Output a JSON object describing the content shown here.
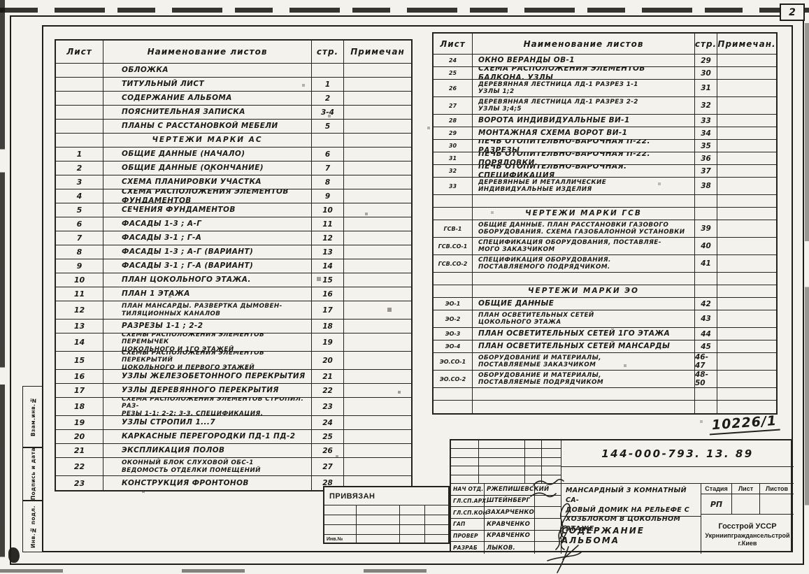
{
  "page": {
    "number": "2"
  },
  "margin_labels": [
    "Взам.инв.№",
    "Подпись и дата",
    "Инв.№ подл."
  ],
  "left_table": {
    "headers": {
      "sheet": "Лист",
      "name": "Наименование листов",
      "page": "стр.",
      "note": "Примечан"
    },
    "rows": [
      {
        "sheet": "",
        "name": "ОБЛОЖКА",
        "page": "",
        "note": ""
      },
      {
        "sheet": "",
        "name": "ТИТУЛЬНЫЙ ЛИСТ",
        "page": "1",
        "note": ""
      },
      {
        "sheet": "",
        "name": "СОДЕРЖАНИЕ АЛЬБОМА",
        "page": "2",
        "note": ""
      },
      {
        "sheet": "",
        "name": "ПОЯСНИТЕЛЬНАЯ ЗАПИСКА",
        "page": "3-4",
        "note": ""
      },
      {
        "sheet": "",
        "name": "ПЛАНЫ С РАССТАНОВКОЙ МЕБЕЛИ",
        "page": "5",
        "note": ""
      },
      {
        "type": "section",
        "sheet": "",
        "name": "ЧЕРТЕЖИ МАРКИ АС",
        "page": "",
        "note": ""
      },
      {
        "sheet": "1",
        "name": "ОБЩИЕ ДАННЫЕ (НАЧАЛО)",
        "page": "6",
        "note": ""
      },
      {
        "sheet": "2",
        "name": "ОБЩИЕ ДАННЫЕ (ОКОНЧАНИЕ)",
        "page": "7",
        "note": ""
      },
      {
        "sheet": "3",
        "name": "СХЕМА ПЛАНИРОВКИ УЧАСТКА",
        "page": "8",
        "note": ""
      },
      {
        "sheet": "4",
        "name": "СХЕМА РАСПОЛОЖЕНИЯ ЭЛЕМЕНТОВ ФУНДАМЕНТОВ",
        "page": "9",
        "note": ""
      },
      {
        "sheet": "5",
        "name": "СЕЧЕНИЯ ФУНДАМЕНТОВ",
        "page": "10",
        "note": ""
      },
      {
        "sheet": "6",
        "name": "ФАСАДЫ 1-3 ; А-Г",
        "page": "11",
        "note": ""
      },
      {
        "sheet": "7",
        "name": "ФАСАДЫ 3-1 ; Г-А",
        "page": "12",
        "note": ""
      },
      {
        "sheet": "8",
        "name": "ФАСАДЫ 1-3 ; А-Г (ВАРИАНТ)",
        "page": "13",
        "note": ""
      },
      {
        "sheet": "9",
        "name": "ФАСАДЫ 3-1 ; Г-А (ВАРИАНТ)",
        "page": "14",
        "note": ""
      },
      {
        "sheet": "10",
        "name": "ПЛАН ЦОКОЛЬНОГО ЭТАЖА.",
        "page": "15",
        "note": ""
      },
      {
        "sheet": "11",
        "name": "ПЛАН 1 ЭТАЖА",
        "page": "16",
        "note": ""
      },
      {
        "sheet": "12",
        "tall": true,
        "name": "ПЛАН МАНСАРДЫ. РАЗВЕРТКА ДЫМОВЕН-\nТИЛЯЦИОННЫХ КАНАЛОВ",
        "page": "17",
        "note": ""
      },
      {
        "sheet": "13",
        "name": "РАЗРЕЗЫ 1-1 ; 2-2",
        "page": "18",
        "note": ""
      },
      {
        "sheet": "14",
        "tall": true,
        "name": "СХЕМЫ РАСПОЛОЖЕНИЯ ЭЛЕМЕНТОВ ПЕРЕМЫЧЕК\nЦОКОЛЬНОГО И 1ГО ЭТАЖЕЙ",
        "page": "19",
        "note": ""
      },
      {
        "sheet": "15",
        "tall": true,
        "name": "СХЕМЫ РАСПОЛОЖЕНИЯ ЭЛЕМЕНТОВ ПЕРЕКРЫТИЙ\nЦОКОЛЬНОГО И ПЕРВОГО ЭТАЖЕЙ",
        "page": "20",
        "note": ""
      },
      {
        "sheet": "16",
        "name": "УЗЛЫ ЖЕЛЕЗОБЕТОННОГО ПЕРЕКРЫТИЯ",
        "page": "21",
        "note": ""
      },
      {
        "sheet": "17",
        "name": "УЗЛЫ ДЕРЕВЯННОГО ПЕРЕКРЫТИЯ",
        "page": "22",
        "note": ""
      },
      {
        "sheet": "18",
        "tall": true,
        "name": "СХЕМА РАСПОЛОЖЕНИЯ ЭЛЕМЕНТОВ СТРОПИЛ. РАЗ-\nРЕЗЫ 1-1; 2-2; 3-3. СПЕЦИФИКАЦИЯ.",
        "page": "23",
        "note": ""
      },
      {
        "sheet": "19",
        "name": "УЗЛЫ СТРОПИЛ 1...7",
        "page": "24",
        "note": ""
      },
      {
        "sheet": "20",
        "name": "КАРКАСНЫЕ ПЕРЕГОРОДКИ ПД-1 ПД-2",
        "page": "25",
        "note": ""
      },
      {
        "sheet": "21",
        "name": "ЭКСПЛИКАЦИЯ ПОЛОВ",
        "page": "26",
        "note": ""
      },
      {
        "sheet": "22",
        "tall": true,
        "name": "ОКОННЫЙ БЛОК СЛУХОВОЙ ОБС-1\nВЕДОМОСТЬ ОТДЕЛКИ ПОМЕЩЕНИЙ",
        "page": "27",
        "note": ""
      },
      {
        "sheet": "23",
        "name": "КОНСТРУКЦИЯ ФРОНТОНОВ",
        "page": "28",
        "note": ""
      }
    ]
  },
  "right_table": {
    "headers": {
      "sheet": "Лист",
      "name": "Наименование листов",
      "page": "стр.",
      "note": "Примечан."
    },
    "rows": [
      {
        "sheet": "24",
        "name": "ОКНО ВЕРАНДЫ ОВ-1",
        "page": "29",
        "note": ""
      },
      {
        "sheet": "25",
        "name": "СХЕМА РАСПОЛОЖЕНИЯ ЭЛЕМЕНТОВ БАЛКОНА. УЗЛЫ",
        "page": "30",
        "note": ""
      },
      {
        "sheet": "26",
        "tall": true,
        "name": "ДЕРЕВЯННАЯ ЛЕСТНИЦА ЛД-1   РАЗРЕЗ 1-1\nУЗЛЫ 1;2",
        "page": "31",
        "note": ""
      },
      {
        "sheet": "27",
        "tall": true,
        "name": "ДЕРЕВЯННАЯ ЛЕСТНИЦА ЛД-1   РАЗРЕЗ 2-2\nУЗЛЫ 3;4;5",
        "page": "32",
        "note": ""
      },
      {
        "sheet": "28",
        "name": "ВОРОТА ИНДИВИДУАЛЬНЫЕ ВИ-1",
        "page": "33",
        "note": ""
      },
      {
        "sheet": "29",
        "name": "МОНТАЖНАЯ СХЕМА ВОРОТ ВИ-1",
        "page": "34",
        "note": ""
      },
      {
        "sheet": "30",
        "name": "ПЕЧЬ ОТОПИТЕЛЬНО-ВАРОЧНАЯ П-22. РАЗРЕЗЫ",
        "page": "35",
        "note": ""
      },
      {
        "sheet": "31",
        "name": "ПЕЧЬ ОТОПИТЕЛЬНО-ВАРОЧНАЯ П-22. ПОРЯДОВКИ.",
        "page": "36",
        "note": ""
      },
      {
        "sheet": "32",
        "name": "ПЕЧЬ ОТОПИТЕЛЬНО-ВАРОЧНАЯ. СПЕЦИФИКАЦИЯ",
        "page": "37",
        "note": ""
      },
      {
        "sheet": "33",
        "tall": true,
        "name": "ДЕРЕВЯННЫЕ И МЕТАЛЛИЧЕСКИЕ\nИНДИВИДУАЛЬНЫЕ ИЗДЕЛИЯ",
        "page": "38",
        "note": ""
      },
      {
        "sheet": "",
        "name": "",
        "page": "",
        "note": ""
      },
      {
        "type": "section",
        "sheet": "",
        "name": "ЧЕРТЕЖИ МАРКИ ГСВ",
        "page": "",
        "note": ""
      },
      {
        "sheet": "ГСВ-1",
        "tall": true,
        "name": "ОБЩИЕ ДАННЫЕ. ПЛАН РАССТАНОВКИ ГАЗОВОГО\nОБОРУДОВАНИЯ. СХЕМА ГАЗОБАЛОННОЙ УСТАНОВКИ",
        "page": "39",
        "note": ""
      },
      {
        "sheet": "ГСВ.СО-1",
        "tall": true,
        "name": "СПЕЦИФИКАЦИЯ ОБОРУДОВАНИЯ, ПОСТАВЛЯЕ-\nМОГО ЗАКАЗЧИКОМ",
        "page": "40",
        "note": ""
      },
      {
        "sheet": "ГСВ.СО-2",
        "tall": true,
        "name": "СПЕЦИФИКАЦИЯ ОБОРУДОВАНИЯ.\nПОСТАВЛЯЕМОГО ПОДРЯДЧИКОМ.",
        "page": "41",
        "note": ""
      },
      {
        "sheet": "",
        "name": "",
        "page": "",
        "note": ""
      },
      {
        "type": "section",
        "sheet": "",
        "name": "ЧЕРТЕЖИ МАРКИ ЭО",
        "page": "",
        "note": ""
      },
      {
        "sheet": "ЭО-1",
        "name": "ОБЩИЕ ДАННЫЕ",
        "page": "42",
        "note": ""
      },
      {
        "sheet": "ЭО-2",
        "tall": true,
        "name": "ПЛАН ОСВЕТИТЕЛЬНЫХ СЕТЕЙ\nЦОКОЛЬНОГО ЭТАЖА",
        "page": "43",
        "note": ""
      },
      {
        "sheet": "ЭО-3",
        "name": "ПЛАН ОСВЕТИТЕЛЬНЫХ СЕТЕЙ 1ГО ЭТАЖА",
        "page": "44",
        "note": ""
      },
      {
        "sheet": "ЭО-4",
        "name": "ПЛАН ОСВЕТИТЕЛЬНЫХ СЕТЕЙ МАНСАРДЫ",
        "page": "45",
        "note": ""
      },
      {
        "sheet": "ЭО.СО-1",
        "tall": true,
        "name": "ОБОРУДОВАНИЕ И МАТЕРИАЛЫ,\nПОСТАВЛЯЕМЫЕ ЗАКАЗЧИКОМ",
        "page": "46-47",
        "note": ""
      },
      {
        "sheet": "ЭО.СО-2",
        "tall": true,
        "name": "ОБОРУДОВАНИЕ И МАТЕРИАЛЫ,\nПОСТАВЛЯЕМЫЕ ПОДРЯДЧИКОМ",
        "page": "48-50",
        "note": ""
      },
      {
        "sheet": "",
        "name": "",
        "page": "",
        "note": ""
      },
      {
        "sheet": "",
        "name": "",
        "page": "",
        "note": ""
      }
    ]
  },
  "privyazan": {
    "label": "ПРИВЯЗАН",
    "inv_label": "Инв.№"
  },
  "title_block": {
    "stamp_number": "10226/1",
    "doc_number": "144-000-793. 13. 89",
    "roles": [
      {
        "role": "НАЧ ОТД.",
        "name": "РЖЕПИШЕВСКИЙ"
      },
      {
        "role": "ГЛ.СП.АРХ.",
        "name": "ШТЕЙНБЕРГ"
      },
      {
        "role": "ГЛ.СП.КОН",
        "name": "ЗАХАРЧЕНКО"
      },
      {
        "role": "ГАП",
        "name": "КРАВЧЕНКО"
      },
      {
        "role": "ПРОВЕР",
        "name": "КРАВЧЕНКО"
      },
      {
        "role": "РАЗРАБ",
        "name": "ЛЫКОВ."
      }
    ],
    "project_title": "МАНСАРДНЫЙ 3 КОМНАТНЫЙ СА-\nДОВЫЙ ДОМИК НА РЕЛЬЕФЕ С\nХОЗБЛОКОМ В ЦОКОЛЬНОМ ЭТАЖЕ",
    "sheet_title": "СОДЕРЖАНИЕ АЛЬБОМА",
    "stage_label": "Стадия",
    "sheet_label": "Лист",
    "sheets_label": "Листов",
    "stage_value": "РП",
    "org_lines": [
      "Госстрой УССР",
      "Укрниипграждансельстрой",
      "г.Киев"
    ]
  }
}
